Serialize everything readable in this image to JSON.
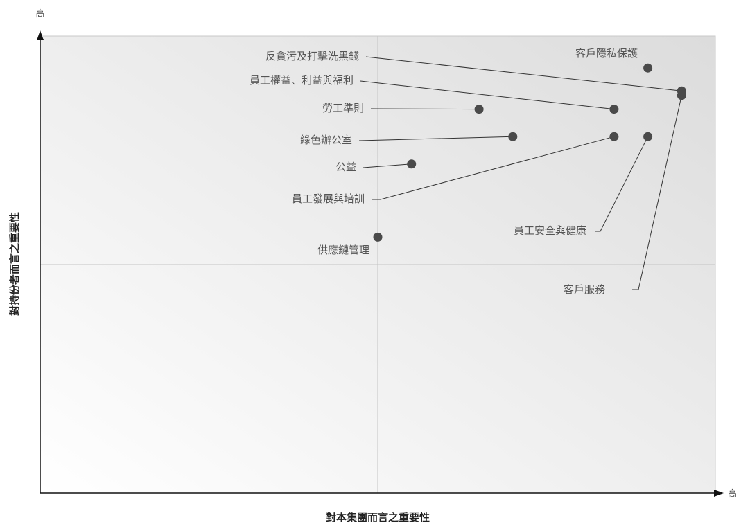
{
  "chart_data": {
    "type": "scatter",
    "title": "",
    "xlabel": "對本集團而言之重要性",
    "ylabel": "對持份者而言之重要性",
    "x_high_label": "高",
    "y_high_label": "高",
    "xlim": [
      0,
      1
    ],
    "ylim": [
      0,
      1
    ],
    "quadrant_divider": {
      "x": 0.5,
      "y": 0.5
    },
    "grid": false,
    "points": [
      {
        "label": "客戶隱私保護",
        "x": 0.9,
        "y": 0.93
      },
      {
        "label": "反貪污及打擊洗黑錢",
        "x": 0.95,
        "y": 0.88
      },
      {
        "label": "客戶服務",
        "x": 0.95,
        "y": 0.87
      },
      {
        "label": "員工權益、利益與福利",
        "x": 0.85,
        "y": 0.84
      },
      {
        "label": "勞工準則",
        "x": 0.65,
        "y": 0.84
      },
      {
        "label": "綠色辦公室",
        "x": 0.7,
        "y": 0.78
      },
      {
        "label": "員工發展與培訓",
        "x": 0.85,
        "y": 0.78
      },
      {
        "label": "員工安全與健康",
        "x": 0.9,
        "y": 0.78
      },
      {
        "label": "公益",
        "x": 0.55,
        "y": 0.72
      },
      {
        "label": "供應鏈管理",
        "x": 0.5,
        "y": 0.56
      }
    ]
  }
}
